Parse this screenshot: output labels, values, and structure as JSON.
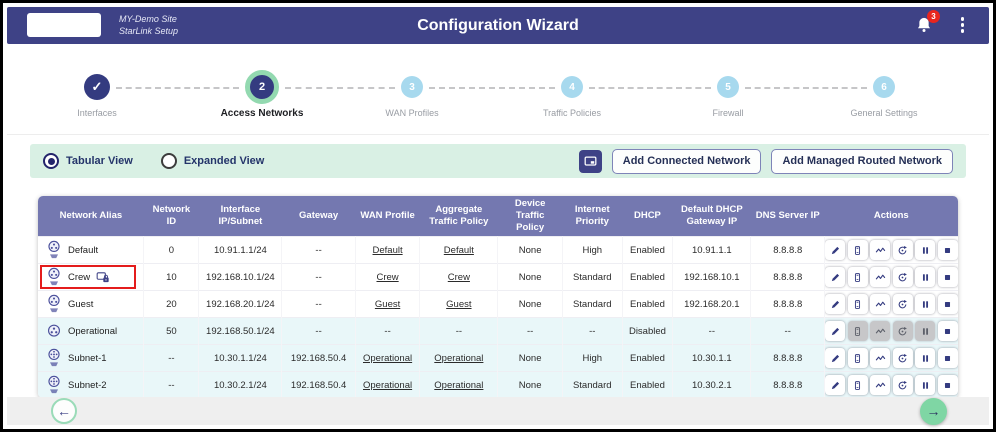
{
  "header": {
    "site_line1": "MY-Demo Site",
    "site_line2": "StarLink Setup",
    "title": "Configuration Wizard",
    "notification_count": "3"
  },
  "stepper": {
    "steps": [
      {
        "number": "1",
        "label": "Interfaces",
        "state": "completed"
      },
      {
        "number": "2",
        "label": "Access Networks",
        "state": "active"
      },
      {
        "number": "3",
        "label": "WAN Profiles",
        "state": "pending"
      },
      {
        "number": "4",
        "label": "Traffic Policies",
        "state": "pending"
      },
      {
        "number": "5",
        "label": "Firewall",
        "state": "pending"
      },
      {
        "number": "6",
        "label": "General Settings",
        "state": "pending"
      }
    ]
  },
  "toolbar": {
    "view_options": [
      {
        "label": "Tabular View",
        "selected": true
      },
      {
        "label": "Expanded View",
        "selected": false
      }
    ],
    "display_button_icon": "display-icon",
    "add_connected_label": "Add Connected Network",
    "add_managed_label": "Add Managed Routed Network"
  },
  "table": {
    "columns": [
      "Network Alias",
      "Network ID",
      "Interface IP/Subnet",
      "Gateway",
      "WAN Profile",
      "Aggregate Traffic Policy",
      "Device Traffic Policy",
      "Internet Priority",
      "DHCP",
      "Default DHCP Gateway IP",
      "DNS Server IP",
      "Actions"
    ],
    "action_icons": [
      "edit-icon",
      "device-icon",
      "activity-icon",
      "renew-icon",
      "pause-icon",
      "stop-icon"
    ],
    "rows": [
      {
        "alias": "Default",
        "icon": "network-hand-icon",
        "network_id": "0",
        "interface_ip_subnet": "10.91.1.1/24",
        "gateway": "--",
        "wan_profile": "Default",
        "aggregate_traffic_policy": "Default",
        "device_traffic_policy": "None",
        "internet_priority": "High",
        "dhcp": "Enabled",
        "default_dhcp_gateway_ip": "10.91.1.1",
        "dns_server_ip": "8.8.8.8",
        "captive_portal_lock": false,
        "highlighted": false,
        "tint": false,
        "disabled_actions": []
      },
      {
        "alias": "Crew",
        "icon": "network-hand-icon",
        "network_id": "10",
        "interface_ip_subnet": "192.168.10.1/24",
        "gateway": "--",
        "wan_profile": "Crew",
        "aggregate_traffic_policy": "Crew",
        "device_traffic_policy": "None",
        "internet_priority": "Standard",
        "dhcp": "Enabled",
        "default_dhcp_gateway_ip": "192.168.10.1",
        "dns_server_ip": "8.8.8.8",
        "captive_portal_lock": true,
        "highlighted": true,
        "tint": false,
        "disabled_actions": []
      },
      {
        "alias": "Guest",
        "icon": "network-hand-icon",
        "network_id": "20",
        "interface_ip_subnet": "192.168.20.1/24",
        "gateway": "--",
        "wan_profile": "Guest",
        "aggregate_traffic_policy": "Guest",
        "device_traffic_policy": "None",
        "internet_priority": "Standard",
        "dhcp": "Enabled",
        "default_dhcp_gateway_ip": "192.168.20.1",
        "dns_server_ip": "8.8.8.8",
        "captive_portal_lock": false,
        "highlighted": false,
        "tint": false,
        "disabled_actions": []
      },
      {
        "alias": "Operational",
        "icon": "network-icon",
        "network_id": "50",
        "interface_ip_subnet": "192.168.50.1/24",
        "gateway": "--",
        "wan_profile": "--",
        "aggregate_traffic_policy": "--",
        "device_traffic_policy": "--",
        "internet_priority": "--",
        "dhcp": "Disabled",
        "default_dhcp_gateway_ip": "--",
        "dns_server_ip": "--",
        "captive_portal_lock": false,
        "highlighted": false,
        "tint": true,
        "disabled_actions": [
          "device-icon",
          "activity-icon",
          "renew-icon",
          "pause-icon"
        ]
      },
      {
        "alias": "Subnet-1",
        "icon": "subnet-hand-icon",
        "network_id": "--",
        "interface_ip_subnet": "10.30.1.1/24",
        "gateway": "192.168.50.4",
        "wan_profile": "Operational",
        "aggregate_traffic_policy": "Operational",
        "device_traffic_policy": "None",
        "internet_priority": "High",
        "dhcp": "Enabled",
        "default_dhcp_gateway_ip": "10.30.1.1",
        "dns_server_ip": "8.8.8.8",
        "captive_portal_lock": false,
        "highlighted": false,
        "tint": true,
        "disabled_actions": []
      },
      {
        "alias": "Subnet-2",
        "icon": "subnet-hand-icon",
        "network_id": "--",
        "interface_ip_subnet": "10.30.2.1/24",
        "gateway": "192.168.50.4",
        "wan_profile": "Operational",
        "aggregate_traffic_policy": "Operational",
        "device_traffic_policy": "None",
        "internet_priority": "Standard",
        "dhcp": "Enabled",
        "default_dhcp_gateway_ip": "10.30.2.1",
        "dns_server_ip": "8.8.8.8",
        "captive_portal_lock": false,
        "highlighted": false,
        "tint": true,
        "disabled_actions": []
      }
    ]
  },
  "footer": {
    "back_icon": "←",
    "next_icon": "→"
  },
  "colors": {
    "header_bg": "#3e4286",
    "table_header_bg": "#7478b0",
    "toolbar_bg": "#d9f0e4",
    "active_step_ring": "#93d9b0",
    "pending_step": "#a7d9ee",
    "next_button_green": "#7fd6a4",
    "badge_red": "#e8251f",
    "highlight_red": "#e41c1c",
    "icon_indigo": "#343b80",
    "row_tint": "#e9f7f9"
  }
}
